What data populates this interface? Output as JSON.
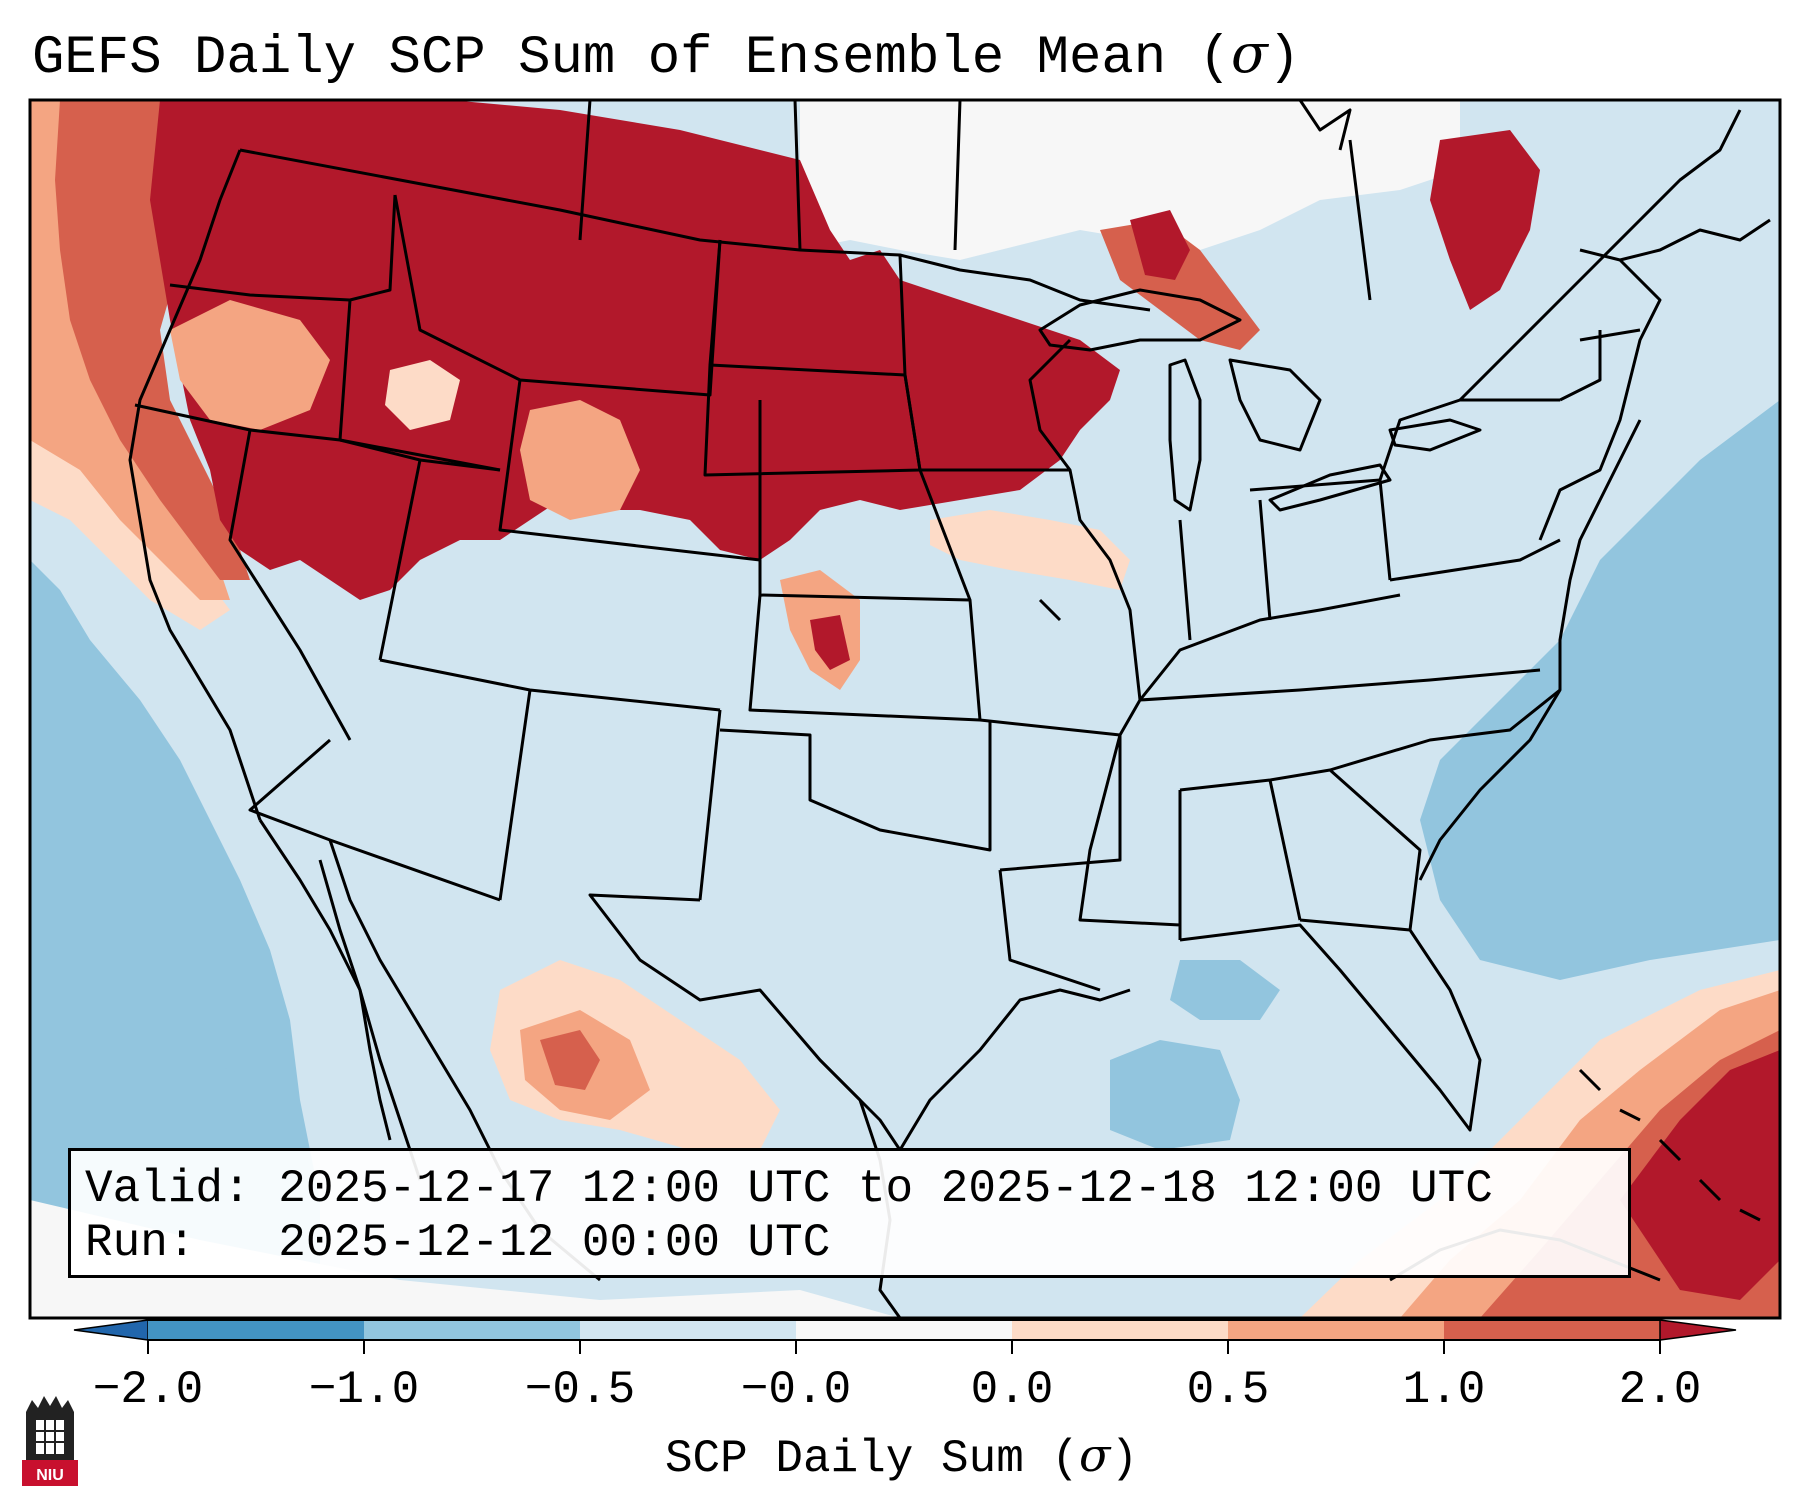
{
  "title": {
    "main": "GEFS Daily SCP Sum of Ensemble Mean (",
    "symbol": "σ",
    "close": ")"
  },
  "info": {
    "valid_label": "Valid:",
    "valid_value": "2025-12-17 12:00 UTC to 2025-12-18 12:00 UTC",
    "run_label": "Run:",
    "run_value": "2025-12-12 00:00 UTC"
  },
  "colorbar": {
    "label_main": "SCP Daily Sum (",
    "label_symbol": "σ",
    "label_close": ")",
    "ticks": [
      "−2.0",
      "−1.0",
      "−0.5",
      "−0.0",
      "0.0",
      "0.5",
      "1.0",
      "2.0"
    ],
    "bins": [
      {
        "color": "#2166ac"
      },
      {
        "color": "#4393c3"
      },
      {
        "color": "#92c5de"
      },
      {
        "color": "#d1e5f0"
      },
      {
        "color": "#f7f7f7"
      },
      {
        "color": "#fddbc7"
      },
      {
        "color": "#f4a582"
      },
      {
        "color": "#d6604d"
      },
      {
        "color": "#b2182b"
      }
    ]
  },
  "map": {
    "ocean_color": "#92c5de",
    "land_color": "#d1e5f0",
    "strong_pos_color": "#b2182b",
    "pos_color": "#d6604d",
    "light_pos_color": "#f4a582",
    "faint_pos_color": "#fddbc7",
    "neutral_color": "#f7f7f7",
    "outline_color": "#000000"
  },
  "logo": {
    "text": "NIU",
    "color": "#c8102e"
  }
}
